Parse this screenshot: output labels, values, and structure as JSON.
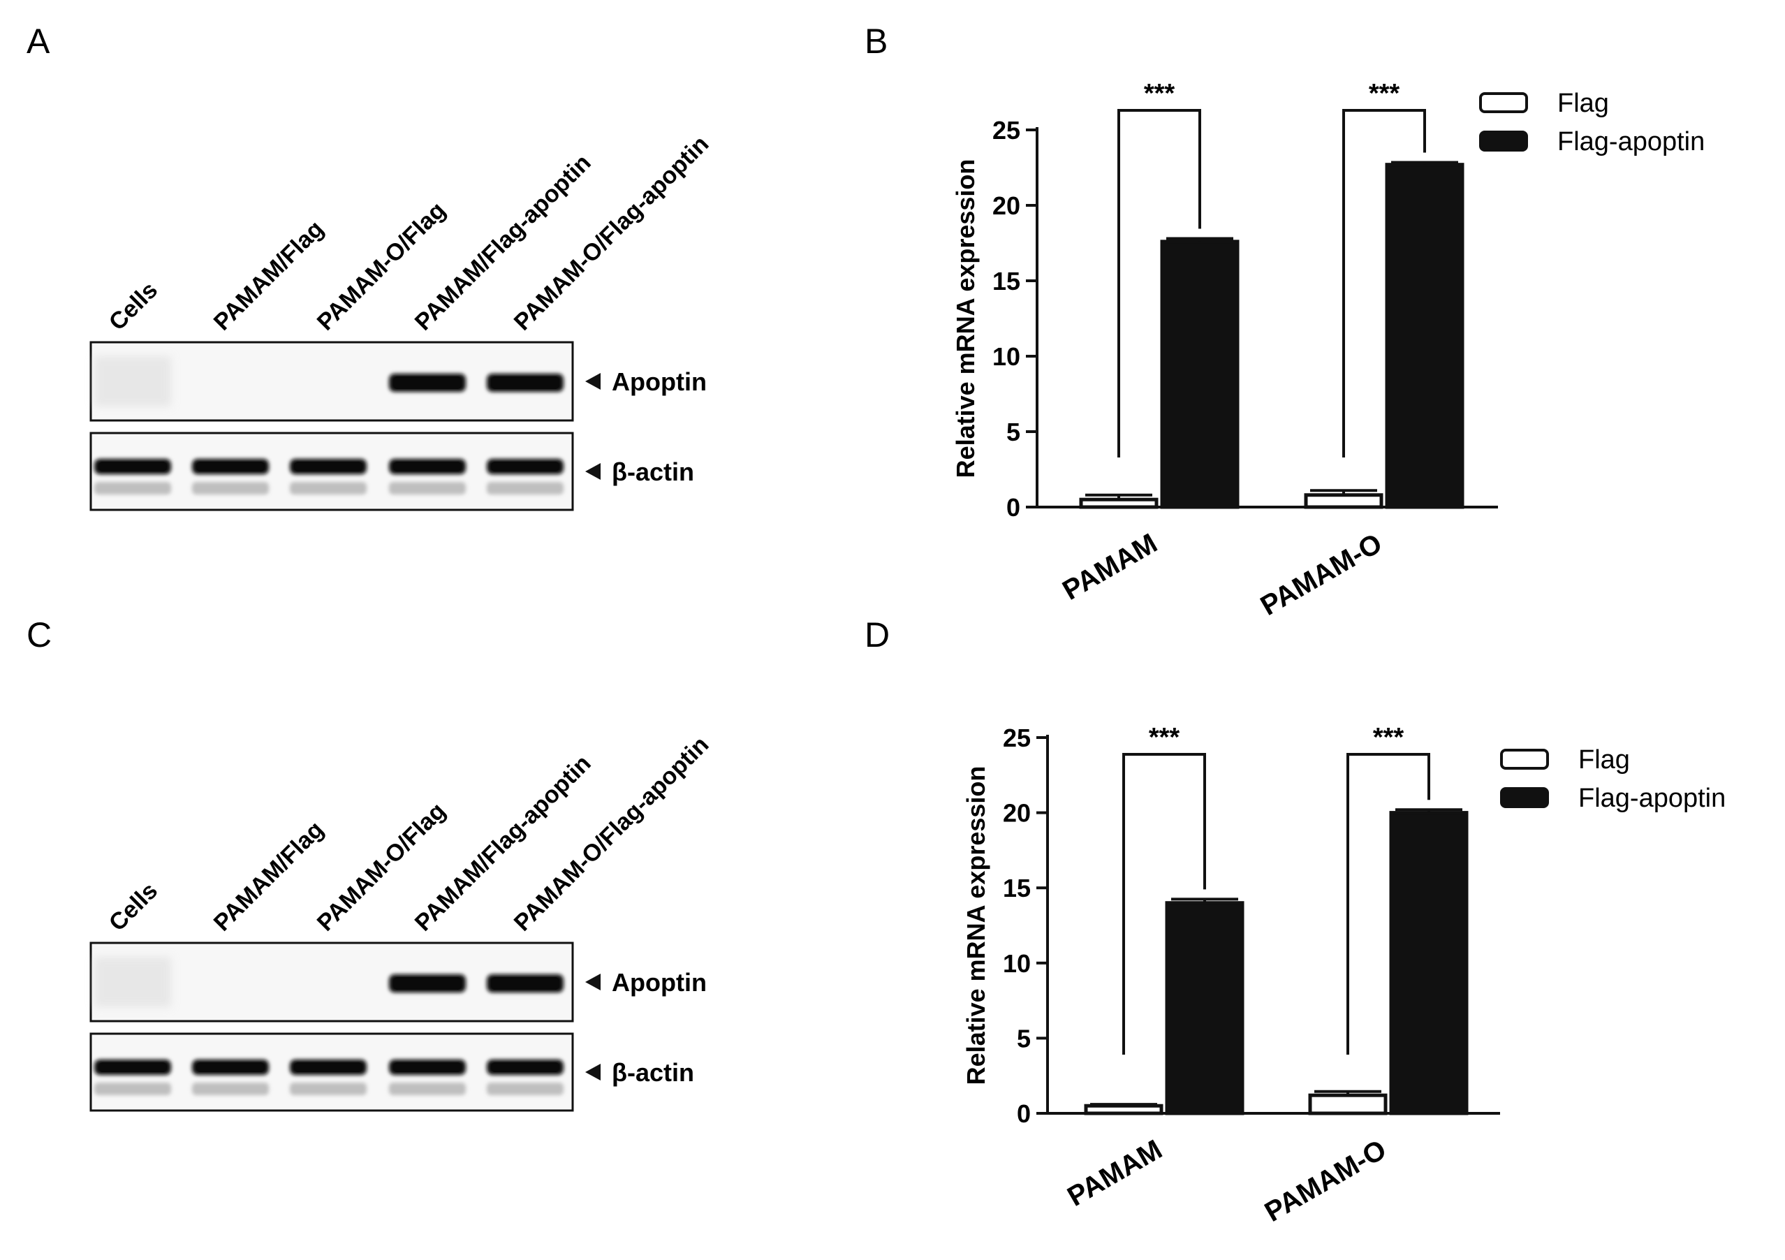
{
  "panels": {
    "A": {
      "letter": "A",
      "lanes": [
        "Cells",
        "PAMAM/Flag",
        "PAMAM-O/Flag",
        "PAMAM/Flag-apoptin",
        "PAMAM-O/Flag-apoptin"
      ],
      "rows": [
        {
          "label": "Apoptin",
          "bands": [
            0.05,
            0,
            0,
            1,
            1
          ]
        },
        {
          "label": "β-actin",
          "bands": [
            1,
            1,
            1,
            1,
            1
          ]
        }
      ]
    },
    "C": {
      "letter": "C",
      "lanes": [
        "Cells",
        "PAMAM/Flag",
        "PAMAM-O/Flag",
        "PAMAM/Flag-apoptin",
        "PAMAM-O/Flag-apoptin"
      ],
      "rows": [
        {
          "label": "Apoptin",
          "bands": [
            0.05,
            0,
            0,
            1,
            1
          ]
        },
        {
          "label": "β-actin",
          "bands": [
            1,
            1,
            1,
            1,
            1
          ]
        }
      ]
    }
  },
  "chart_data": [
    {
      "panel": "B",
      "type": "bar",
      "categories": [
        "PAMAM",
        "PAMAM-O"
      ],
      "ylabel": "Relative mRNA expression",
      "ylim": [
        0,
        25
      ],
      "yticks": [
        0,
        5,
        10,
        15,
        20,
        25
      ],
      "series": [
        {
          "name": "Flag",
          "values": [
            0.5,
            0.8
          ],
          "errors": [
            0.3,
            0.3
          ],
          "color": "#ffffff"
        },
        {
          "name": "Flag-apoptin",
          "values": [
            17.6,
            22.7
          ],
          "errors": [
            0.2,
            0.15
          ],
          "color": "#111111"
        }
      ],
      "significance": [
        "***",
        "***"
      ],
      "legend": "top-right"
    },
    {
      "panel": "D",
      "type": "bar",
      "categories": [
        "PAMAM",
        "PAMAM-O"
      ],
      "ylabel": "Relative mRNA expression",
      "ylim": [
        0,
        25
      ],
      "yticks": [
        0,
        5,
        10,
        15,
        20,
        25
      ],
      "series": [
        {
          "name": "Flag",
          "values": [
            0.5,
            1.2
          ],
          "errors": [
            0.1,
            0.25
          ],
          "color": "#ffffff"
        },
        {
          "name": "Flag-apoptin",
          "values": [
            14.0,
            20.0
          ],
          "errors": [
            0.25,
            0.2
          ],
          "color": "#111111"
        }
      ],
      "significance": [
        "***",
        "***"
      ],
      "legend": "top-right"
    }
  ]
}
